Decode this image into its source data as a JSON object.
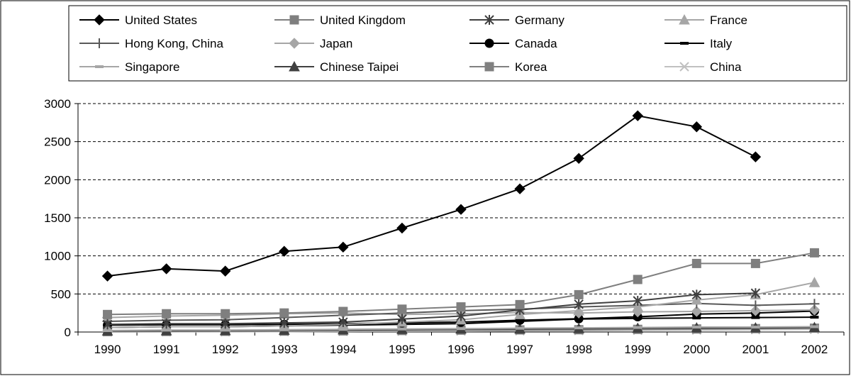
{
  "chart_data": {
    "type": "line",
    "title": "",
    "xlabel": "",
    "ylabel": "",
    "x": [
      "1990",
      "1991",
      "1992",
      "1993",
      "1994",
      "1995",
      "1996",
      "1997",
      "1998",
      "1999",
      "2000",
      "2001",
      "2002"
    ],
    "ylim": [
      0,
      3000
    ],
    "yticks": [
      "0",
      "500",
      "1000",
      "1500",
      "2000",
      "2500",
      "3000"
    ],
    "grid": "horizontal dashed",
    "legend_position": "top",
    "series": [
      {
        "name": "United States",
        "color": "#000000",
        "marker": "diamond",
        "values": [
          735,
          830,
          800,
          1060,
          1115,
          1365,
          1610,
          1880,
          2280,
          2840,
          2695,
          2300,
          null
        ]
      },
      {
        "name": "United Kingdom",
        "color": "#7f7f7f",
        "marker": "square",
        "values": [
          230,
          240,
          240,
          250,
          270,
          300,
          330,
          360,
          490,
          690,
          900,
          900,
          1040
        ]
      },
      {
        "name": "Germany",
        "color": "#404040",
        "marker": "asterisk",
        "values": [
          100,
          110,
          110,
          120,
          130,
          170,
          210,
          290,
          365,
          410,
          490,
          510,
          null
        ]
      },
      {
        "name": "France",
        "color": "#a6a6a6",
        "marker": "triangle",
        "values": [
          60,
          70,
          70,
          80,
          100,
          130,
          160,
          230,
          280,
          330,
          420,
          490,
          650
        ]
      },
      {
        "name": "Hong Kong, China",
        "color": "#595959",
        "marker": "plus",
        "values": [
          140,
          155,
          160,
          190,
          220,
          250,
          280,
          300,
          330,
          350,
          375,
          350,
          370
        ]
      },
      {
        "name": "Japan",
        "color": "#a6a6a6",
        "marker": "diamond",
        "values": [
          190,
          210,
          220,
          240,
          250,
          230,
          240,
          255,
          250,
          265,
          270,
          280,
          290
        ]
      },
      {
        "name": "Canada",
        "color": "#000000",
        "marker": "circle",
        "values": [
          90,
          95,
          95,
          100,
          110,
          120,
          130,
          155,
          175,
          200,
          235,
          250,
          275
        ]
      },
      {
        "name": "Italy",
        "color": "#000000",
        "marker": "dash",
        "values": [
          60,
          70,
          70,
          80,
          90,
          100,
          110,
          140,
          170,
          180,
          185,
          190,
          195
        ]
      },
      {
        "name": "Singapore",
        "color": "#a6a6a6",
        "marker": "dash",
        "values": [
          20,
          25,
          25,
          30,
          35,
          40,
          45,
          50,
          55,
          60,
          65,
          65,
          70
        ]
      },
      {
        "name": "Chinese Taipei",
        "color": "#404040",
        "marker": "triangle",
        "values": [
          15,
          18,
          20,
          25,
          30,
          35,
          40,
          40,
          45,
          50,
          55,
          55,
          60
        ]
      },
      {
        "name": "Korea",
        "color": "#808080",
        "marker": "square",
        "values": [
          5,
          8,
          10,
          12,
          15,
          20,
          25,
          28,
          30,
          35,
          40,
          45,
          50
        ]
      },
      {
        "name": "China",
        "color": "#c0c0c0",
        "marker": "x",
        "values": [
          2,
          3,
          3,
          5,
          8,
          10,
          12,
          15,
          18,
          22,
          25,
          30,
          35
        ]
      }
    ]
  }
}
